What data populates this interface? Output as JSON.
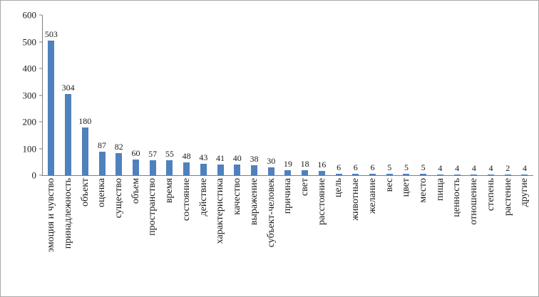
{
  "chart_data": {
    "type": "bar",
    "title": "",
    "xlabel": "",
    "ylabel": "",
    "categories": [
      "эмоция и чувство",
      "принадлежность",
      "объект",
      "оценка",
      "существо",
      "объем",
      "пространство",
      "время",
      "состояние",
      "действие",
      "характеристика",
      "качество",
      "выражение",
      "субъект-человек",
      "причина",
      "свет",
      "расстояние",
      "цель",
      "животные",
      "желание",
      "вес",
      "цвет",
      "место",
      "пища",
      "ценность",
      "отношение",
      "степень",
      "растение",
      "другие"
    ],
    "values": [
      503,
      304,
      180,
      87,
      82,
      60,
      57,
      55,
      48,
      43,
      41,
      40,
      38,
      30,
      19,
      18,
      16,
      6,
      6,
      6,
      5,
      5,
      5,
      4,
      4,
      4,
      4,
      2,
      4
    ],
    "ylim": [
      0,
      600
    ],
    "yticks": [
      0,
      100,
      200,
      300,
      400,
      500,
      600
    ],
    "bar_color": "#4f81bd",
    "axis_color": "#7f7f7f",
    "grid": false,
    "data_labels": true,
    "legend": "none",
    "x_label_rotation": "vertical-bottom-to-top"
  }
}
